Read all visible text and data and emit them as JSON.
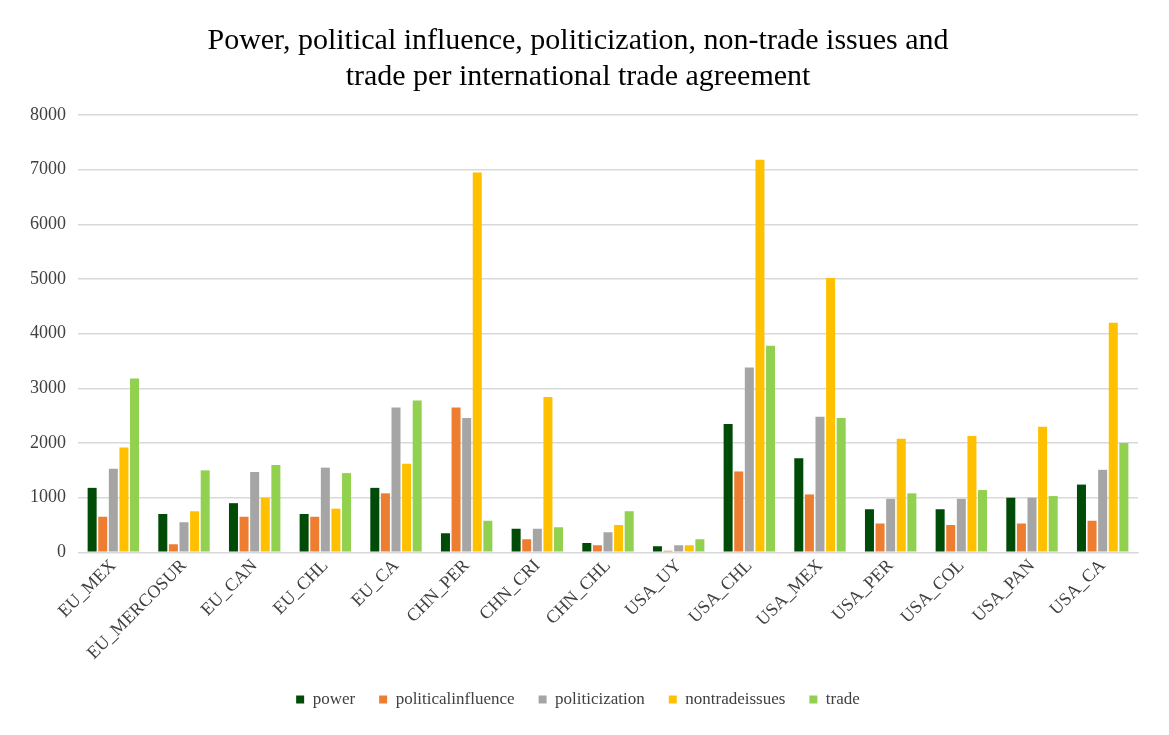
{
  "chart_data": {
    "type": "bar",
    "title": "Power, political influence, politicization, non-trade issues and trade per international trade agreement",
    "categories": [
      "EU_MEX",
      "EU_MERCOSUR",
      "EU_CAN",
      "EU_CHL",
      "EU_CA",
      "CHN_PER",
      "CHN_CRI",
      "CHN_CHL",
      "USA_UY",
      "USA_CHL",
      "USA_MEX",
      "USA_PER",
      "USA_COL",
      "USA_PAN",
      "USA_CA"
    ],
    "series": [
      {
        "name": "power",
        "color": "#004b08",
        "values": [
          1180,
          700,
          900,
          700,
          1180,
          350,
          430,
          170,
          110,
          2350,
          1720,
          790,
          790,
          1000,
          1240
        ]
      },
      {
        "name": "politicalinfluence",
        "color": "#ed7d31",
        "values": [
          650,
          150,
          650,
          650,
          1080,
          2650,
          240,
          130,
          30,
          1480,
          1060,
          530,
          500,
          530,
          580
        ]
      },
      {
        "name": "politicization",
        "color": "#a5a5a5",
        "values": [
          1530,
          550,
          1470,
          1550,
          2650,
          2460,
          430,
          370,
          130,
          3380,
          2480,
          980,
          980,
          1000,
          1510
        ]
      },
      {
        "name": "nontradeissues",
        "color": "#ffc000",
        "values": [
          1920,
          750,
          1000,
          800,
          1620,
          6950,
          2840,
          500,
          130,
          7180,
          5020,
          2080,
          2130,
          2300,
          4200
        ]
      },
      {
        "name": "trade",
        "color": "#92d050",
        "values": [
          3180,
          1500,
          1600,
          1450,
          2780,
          580,
          460,
          750,
          240,
          3780,
          2460,
          1080,
          1140,
          1030,
          2000
        ]
      }
    ],
    "ylim": [
      0,
      8000
    ],
    "yticks": [
      0,
      1000,
      2000,
      3000,
      4000,
      5000,
      6000,
      7000,
      8000
    ],
    "grid": "y",
    "legend": "bottom"
  }
}
